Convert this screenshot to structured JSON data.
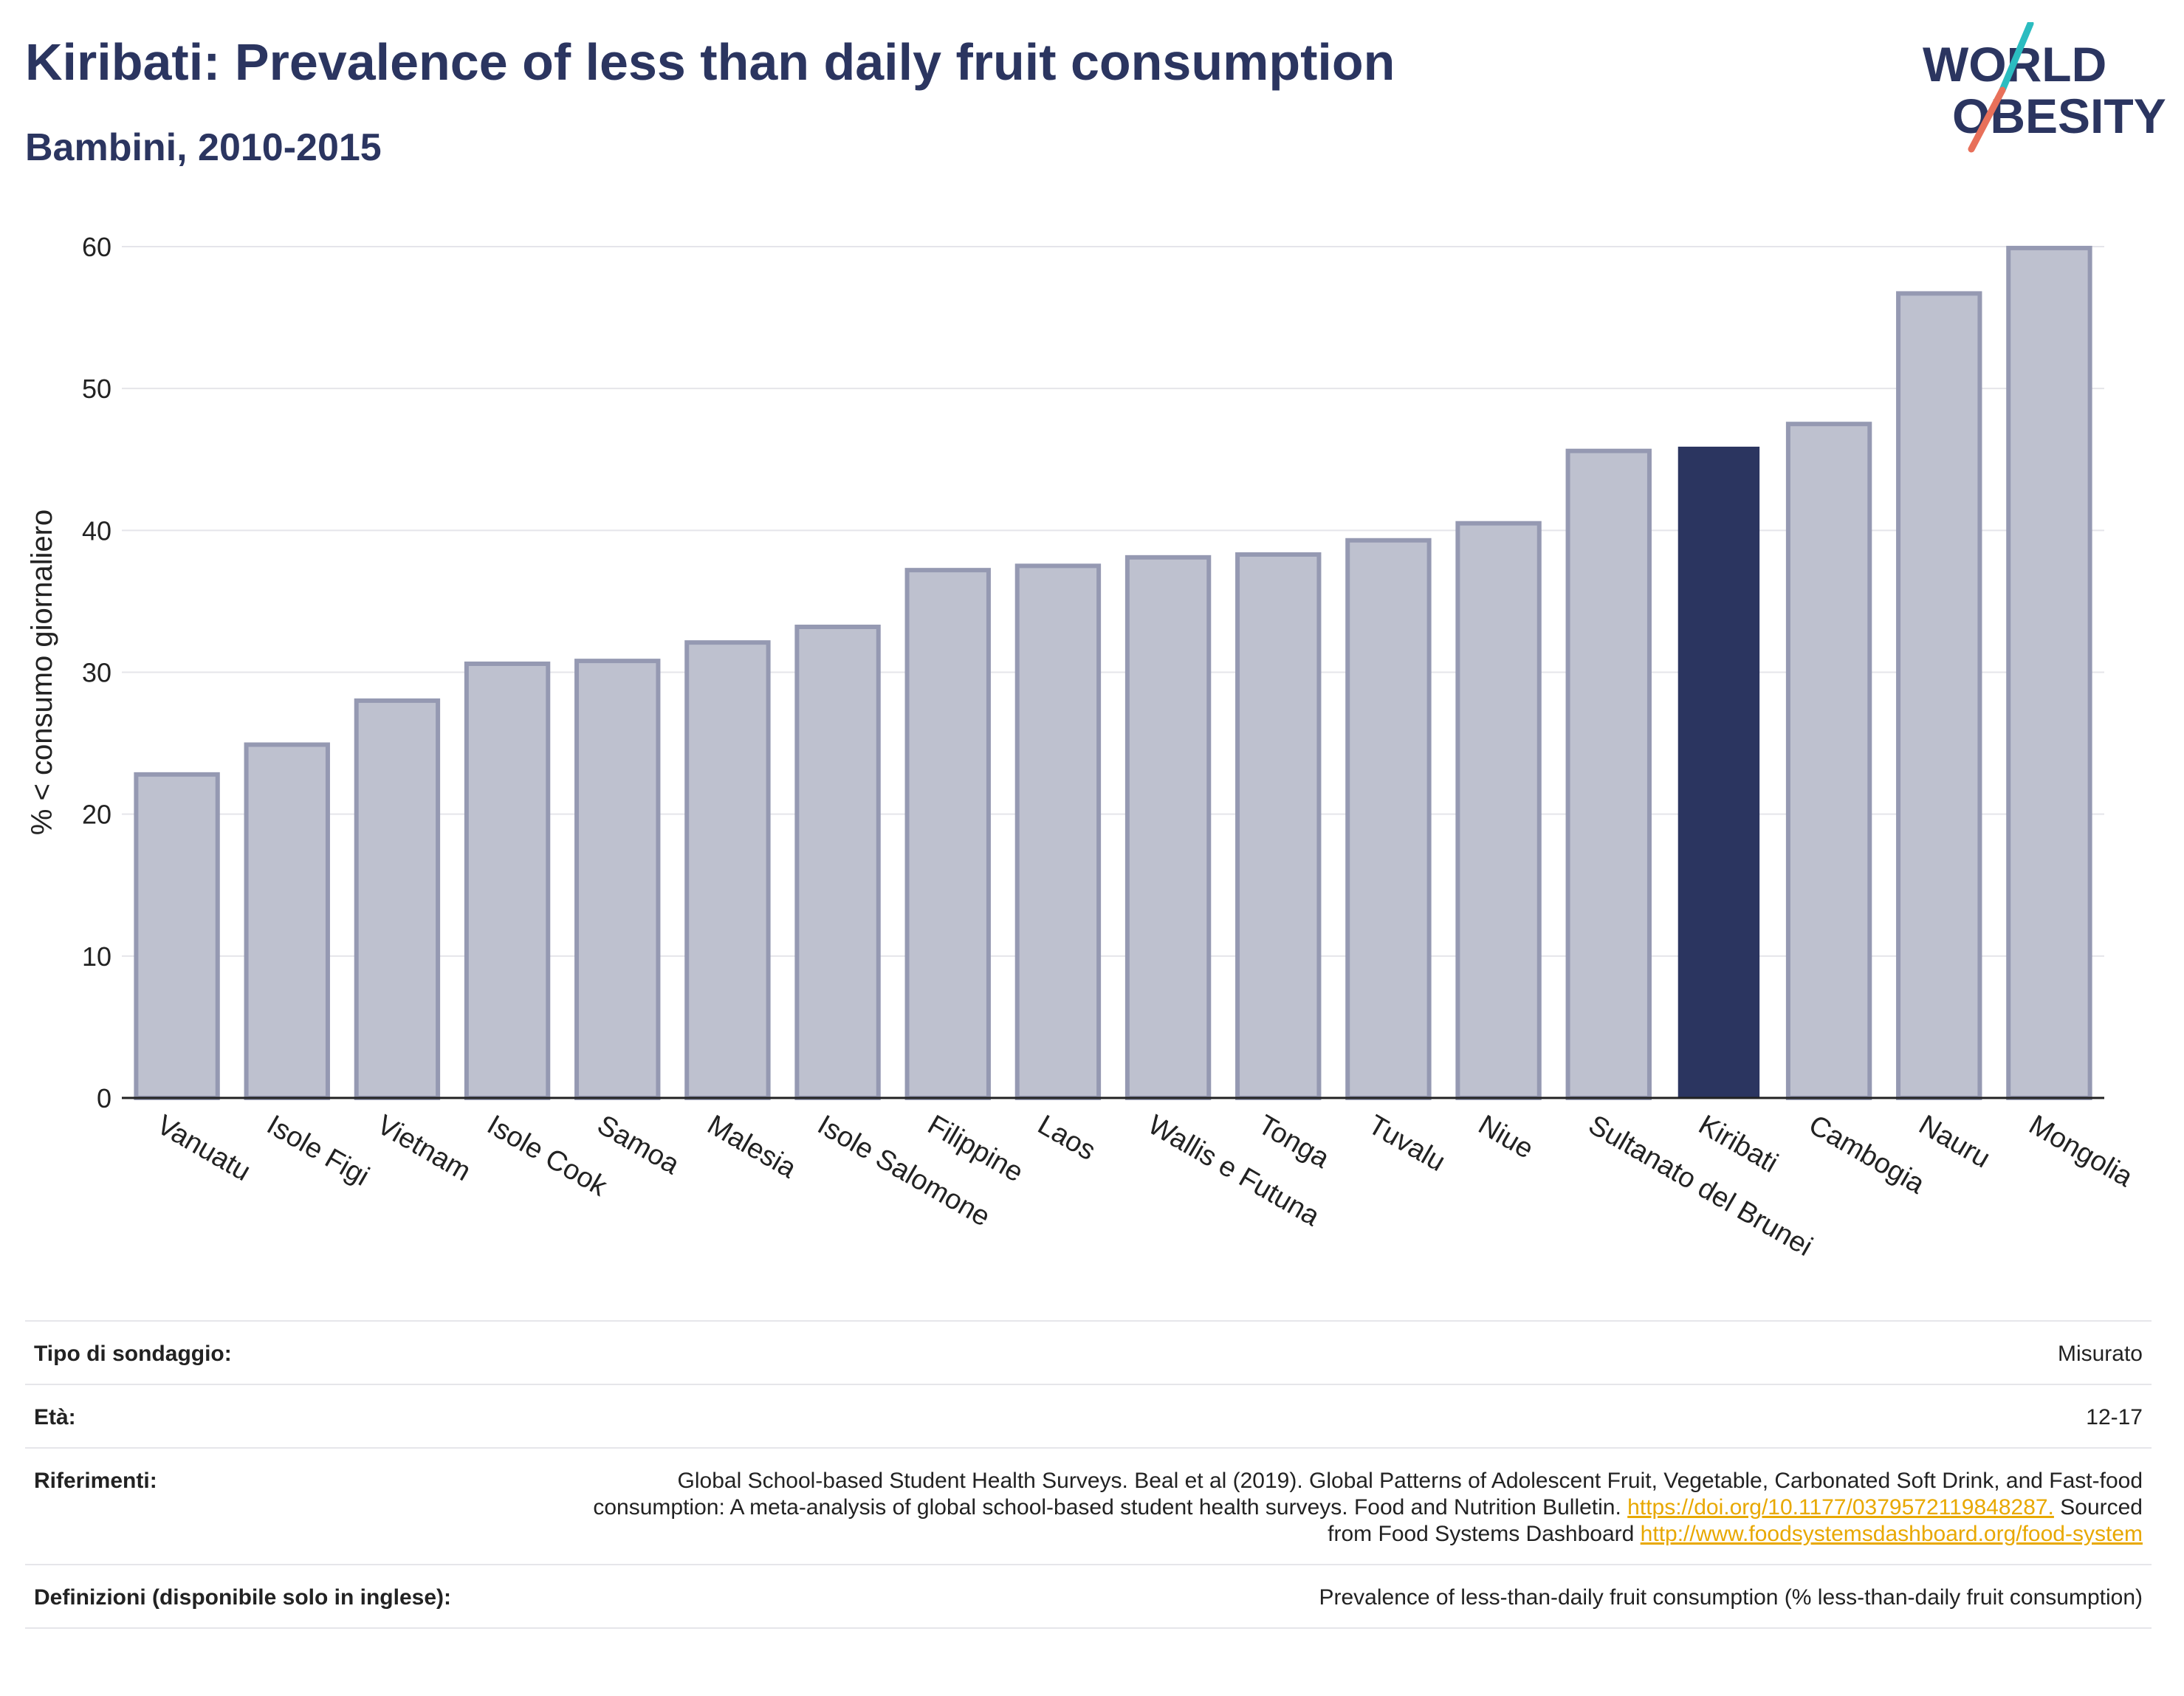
{
  "header": {
    "title": "Kiribati: Prevalence of less than daily fruit consumption",
    "subtitle": "Bambini, 2010-2015"
  },
  "logo": {
    "line1": "WORLD",
    "line2": "OBESITY",
    "colors": {
      "text": "#2b3560",
      "slash_top": "#2bbcc0",
      "slash_bottom": "#e8705a"
    }
  },
  "chart_data": {
    "type": "bar",
    "categories": [
      "Vanuatu",
      "Isole Figi",
      "Vietnam",
      "Isole Cook",
      "Samoa",
      "Malesia",
      "Isole Salomone",
      "Filippine",
      "Laos",
      "Wallis e Futuna",
      "Tonga",
      "Tuvalu",
      "Niue",
      "Sultanato del Brunei",
      "Kiribati",
      "Cambogia",
      "Nauru",
      "Mongolia"
    ],
    "values": [
      22.8,
      24.9,
      28.0,
      30.6,
      30.8,
      32.1,
      33.2,
      37.2,
      37.5,
      38.1,
      38.3,
      39.3,
      40.5,
      45.6,
      45.9,
      47.5,
      56.7,
      59.9
    ],
    "highlight": "Kiribati",
    "ylabel": "% < consumo giornaliero",
    "xlabel": "",
    "ylim": [
      0,
      60
    ],
    "yticks": [
      0,
      10,
      20,
      30,
      40,
      50,
      60
    ],
    "grid": true,
    "colors": {
      "bar": "#bec1cf",
      "bar_border": "#9599b2",
      "highlight": "#2b3560",
      "grid": "#e5e5ea"
    }
  },
  "meta": {
    "survey_type_label": "Tipo di sondaggio:",
    "survey_type_value": "Misurato",
    "age_label": "Età:",
    "age_value": "12-17",
    "references_label": "Riferimenti:",
    "references_text_1": "Global School-based Student Health Surveys. Beal et al (2019). Global Patterns of Adolescent Fruit, Vegetable, Carbonated Soft Drink, and Fast-food consumption: A meta-analysis of global school-based student health surveys. Food and Nutrition Bulletin.",
    "references_link_1": "https://doi.org/10.1177/0379572119848287.",
    "references_text_2": "Sourced from Food Systems Dashboard",
    "references_link_2": "http://www.foodsystemsdashboard.org/food-system",
    "definitions_label": "Definizioni (disponibile solo in inglese):",
    "definitions_value": "Prevalence of less-than-daily fruit consumption (% less-than-daily fruit consumption)"
  }
}
